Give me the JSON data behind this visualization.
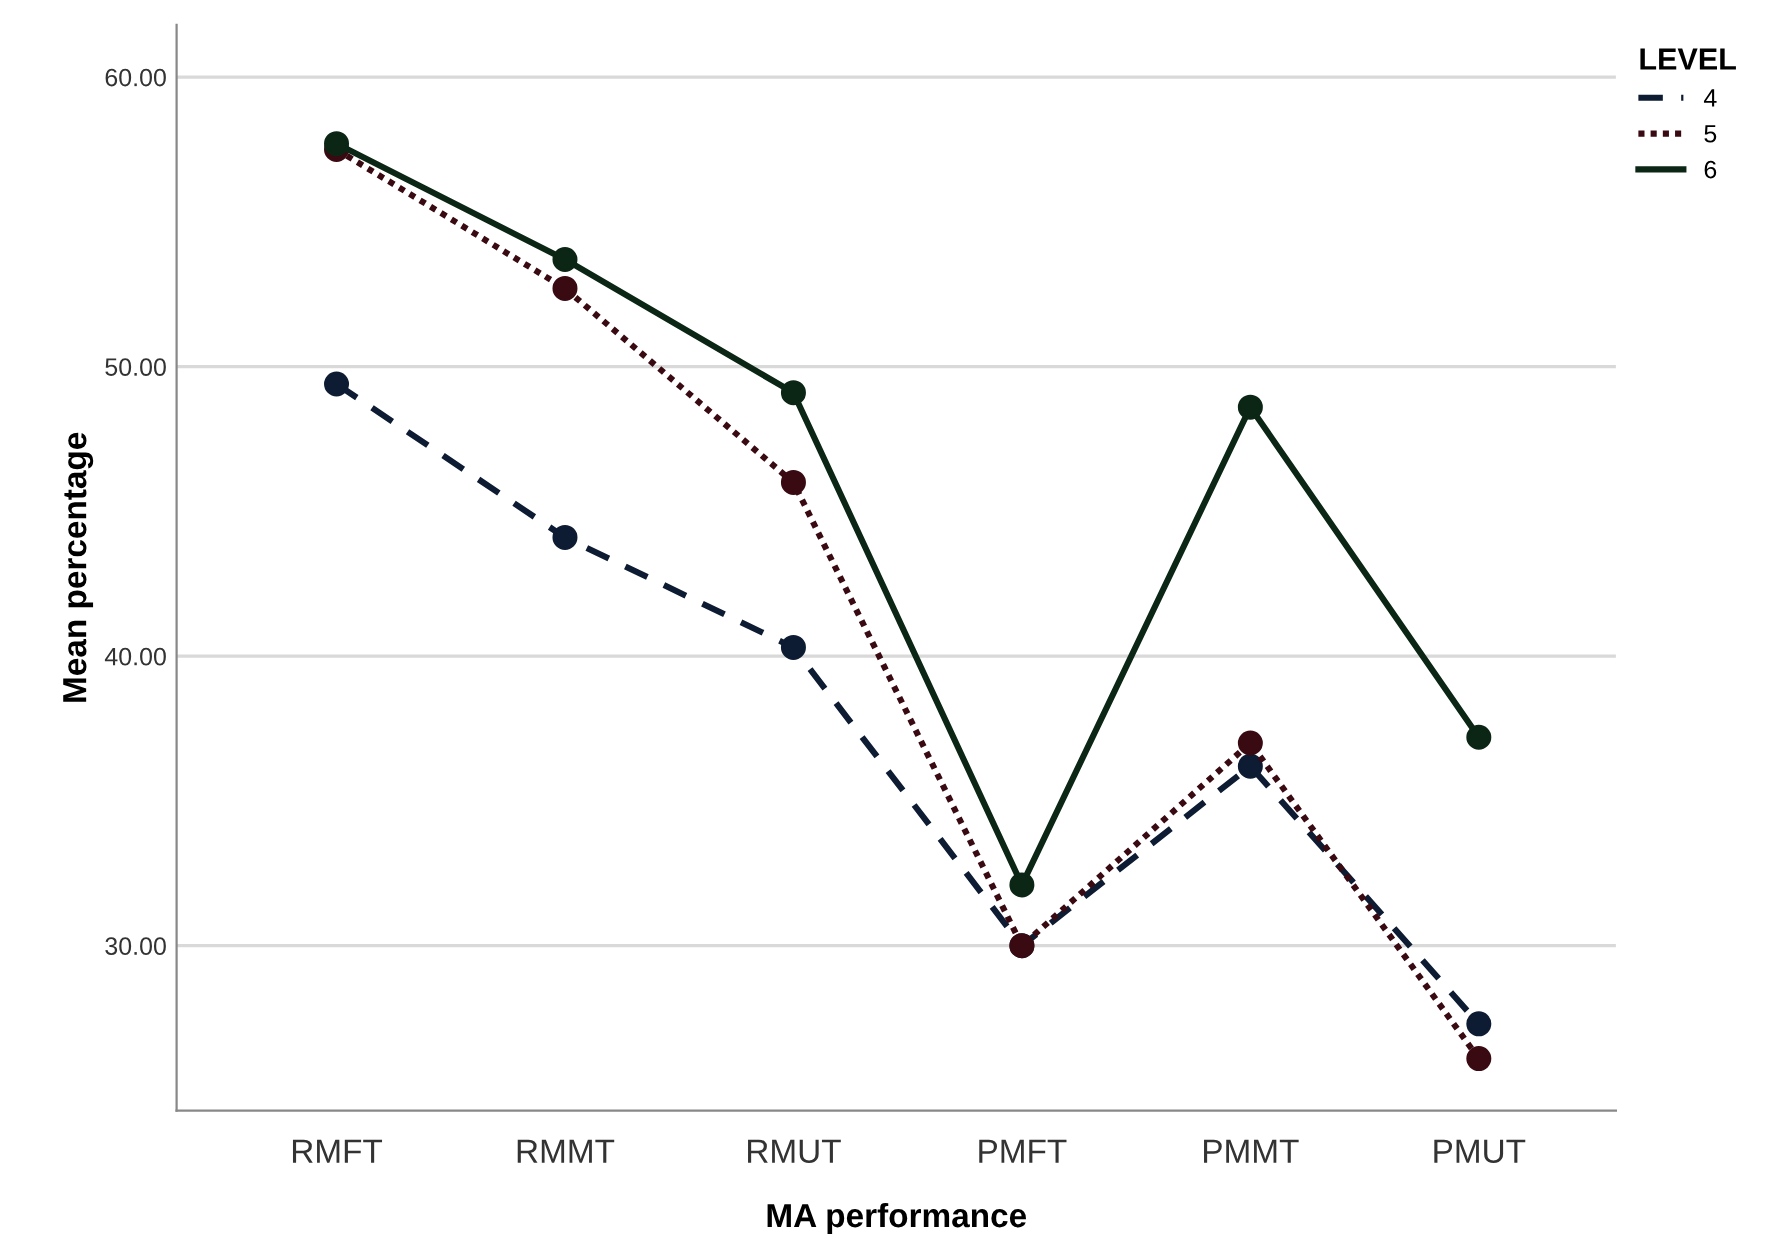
{
  "chart_data": {
    "type": "line",
    "xlabel": "MA performance",
    "ylabel": "Mean percentage",
    "legend_title": "LEVEL",
    "categories": [
      "RMFT",
      "RMMT",
      "RMUT",
      "PMFT",
      "PMMT",
      "PMUT"
    ],
    "series": [
      {
        "name": "4",
        "color": "#0d1b33",
        "line_style": "dashed",
        "values": [
          49.4,
          44.1,
          40.3,
          30.0,
          36.2,
          27.3
        ]
      },
      {
        "name": "5",
        "color": "#3a0a12",
        "line_style": "dotted",
        "values": [
          57.5,
          52.7,
          46.0,
          30.0,
          37.0,
          26.1
        ]
      },
      {
        "name": "6",
        "color": "#0b2614",
        "line_style": "solid",
        "values": [
          57.7,
          53.7,
          49.1,
          32.1,
          48.6,
          37.2
        ]
      }
    ],
    "ylim": [
      24.3,
      61.8
    ],
    "yticks": [
      {
        "value": 30,
        "label": "30.00"
      },
      {
        "value": 40,
        "label": "40.00"
      },
      {
        "value": 50,
        "label": "50.00"
      },
      {
        "value": 60,
        "label": "60.00"
      }
    ],
    "grid": "y",
    "legend": "top right",
    "marker": "circle"
  }
}
